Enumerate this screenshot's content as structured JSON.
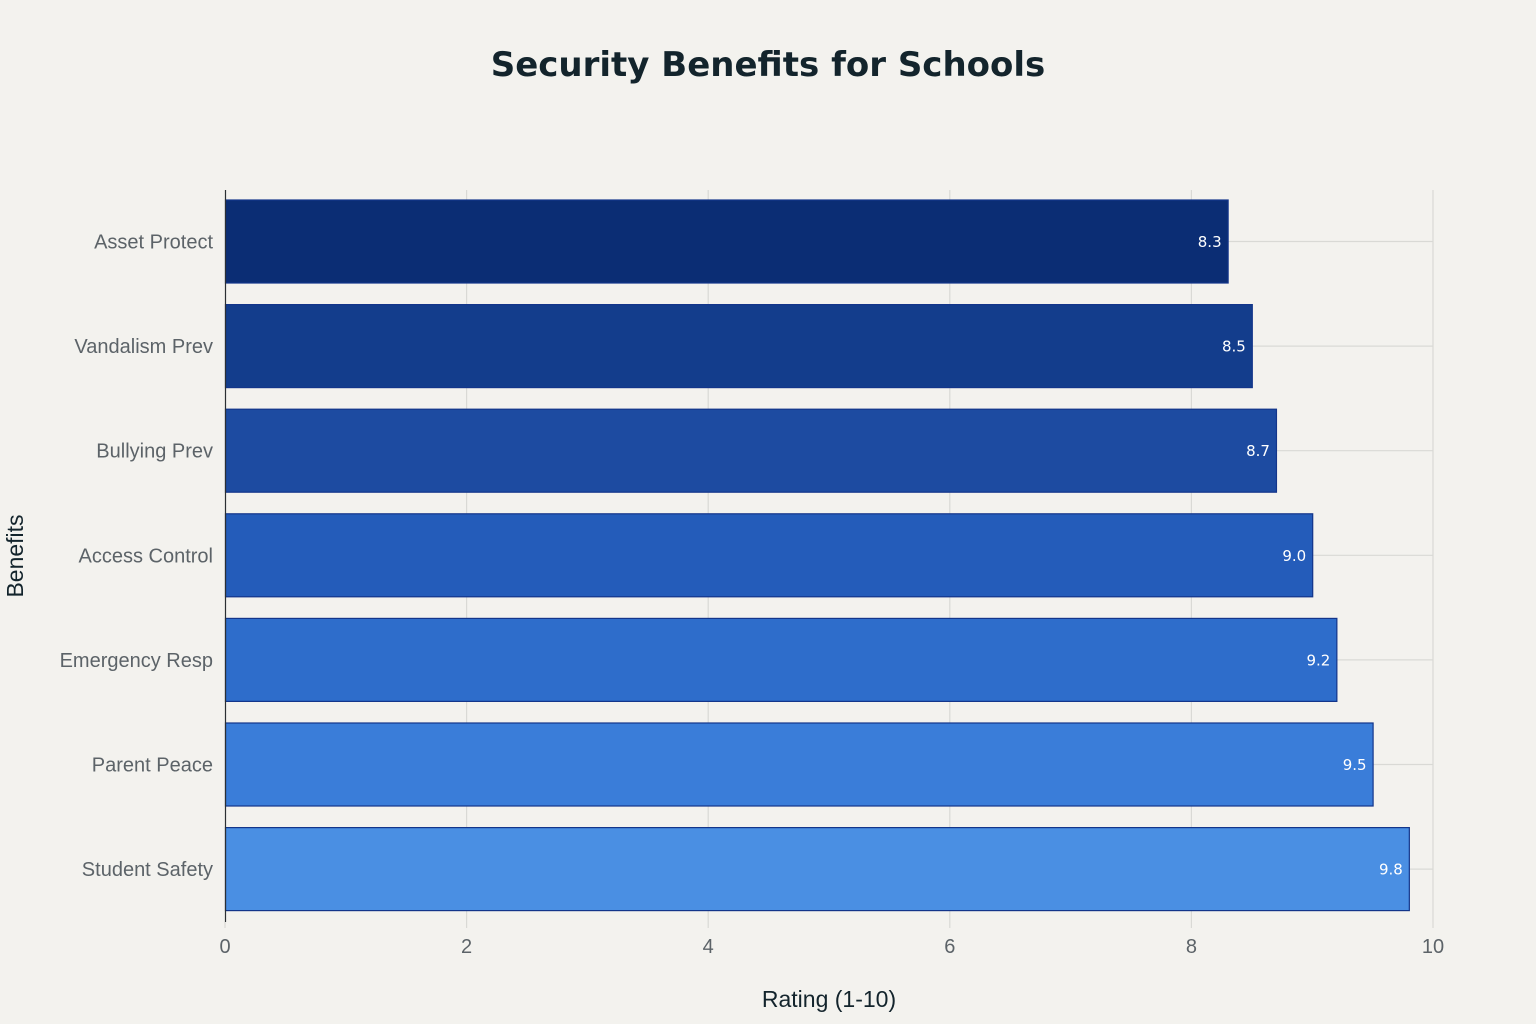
{
  "chart_data": {
    "type": "bar",
    "orientation": "horizontal",
    "title": "Security Benefits for Schools",
    "xlabel": "Rating (1-10)",
    "ylabel": "Benefits",
    "categories": [
      "Asset Protect",
      "Vandalism Prev",
      "Bullying Prev",
      "Access Control",
      "Emergency Resp",
      "Parent Peace",
      "Student Safety"
    ],
    "values": [
      8.3,
      8.5,
      8.7,
      9.0,
      9.2,
      9.5,
      9.8
    ],
    "data_labels": [
      "8.3",
      "8.5",
      "8.7",
      "9.0",
      "9.2",
      "9.5",
      "9.8"
    ],
    "colors": [
      "#0b2d74",
      "#133d8c",
      "#1d4ba1",
      "#245cba",
      "#2e6dcb",
      "#3a7dd9",
      "#4a8fe3"
    ],
    "bar_outline": "#13358a",
    "xlim": [
      0,
      10
    ],
    "xticks": [
      0,
      2,
      4,
      6,
      8,
      10
    ],
    "grid": true,
    "legend": "none"
  }
}
